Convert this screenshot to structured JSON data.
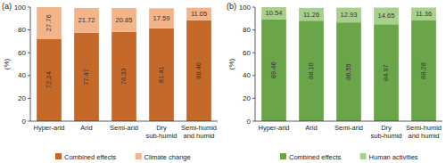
{
  "chart_data": [
    {
      "type": "bar",
      "title": "(a)",
      "y_label": "(%)",
      "stacked": true,
      "data_labels": true,
      "legend": "bottom",
      "categories": [
        "Hyper-arid",
        "Arid",
        "Semi-arid",
        "Dry sub-humid",
        "Semi-humid and humid"
      ],
      "series": [
        {
          "name": "Combined effects",
          "color": "#c5692a",
          "values": [
            72.24,
            77.47,
            78.33,
            81.41,
            88.46
          ],
          "value_labels": [
            "72.24",
            "77.47",
            "78.33",
            "81.41",
            "88.46"
          ]
        },
        {
          "name": "Climate change",
          "color": "#f3b48a",
          "values": [
            27.76,
            21.72,
            20.85,
            17.59,
            11.05
          ],
          "value_labels": [
            "27.76",
            "21.72",
            "20.85",
            "17.59",
            "11.05"
          ]
        }
      ],
      "ylim": [
        0,
        100
      ],
      "yticks": [
        0,
        20,
        40,
        60,
        80,
        100
      ]
    },
    {
      "type": "bar",
      "title": "(b)",
      "y_label": "(%)",
      "stacked": true,
      "data_labels": true,
      "legend": "bottom",
      "categories": [
        "Hyper-arid",
        "Arid",
        "Semi-arid",
        "Dry sub-humid",
        "Semi-humid and humid"
      ],
      "series": [
        {
          "name": "Combined effects",
          "color": "#6aa54a",
          "values": [
            89.46,
            88.1,
            86.59,
            84.97,
            88.28
          ],
          "value_labels": [
            "89.46",
            "88.10",
            "86.59",
            "84.97",
            "88.28"
          ]
        },
        {
          "name": "Human activities",
          "color": "#a8d08d",
          "values": [
            10.54,
            11.26,
            12.93,
            14.65,
            11.36
          ],
          "value_labels": [
            "10.54",
            "11.26",
            "12.93",
            "14.65",
            "11.36"
          ]
        }
      ],
      "ylim": [
        0,
        100
      ],
      "yticks": [
        0,
        20,
        40,
        60,
        80,
        100
      ]
    }
  ]
}
